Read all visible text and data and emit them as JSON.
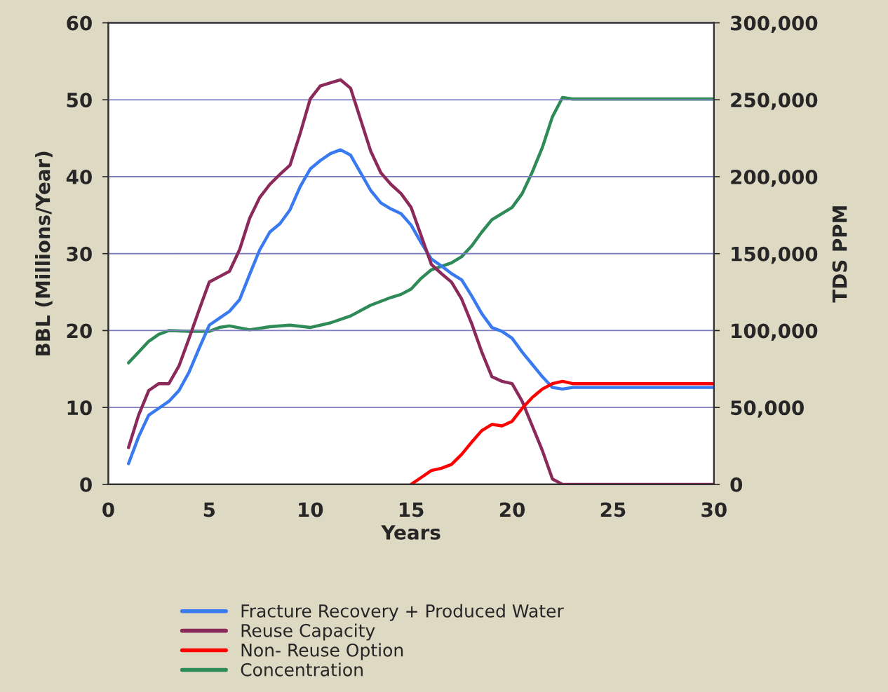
{
  "chart_data": {
    "type": "line",
    "xlabel": "Years",
    "ylabel": "BBL (Millions/Year)",
    "y2label": "TDS PPM",
    "xlim": [
      0,
      30
    ],
    "xticks": [
      0,
      5,
      10,
      15,
      20,
      25,
      30
    ],
    "ylim": [
      0,
      60
    ],
    "yticks": [
      0,
      10,
      20,
      30,
      40,
      50,
      60
    ],
    "y2lim": [
      0,
      300000
    ],
    "y2ticks": [
      {
        "value": 0,
        "label": "0"
      },
      {
        "value": 50000,
        "label": "50,000"
      },
      {
        "value": 100000,
        "label": "100,000"
      },
      {
        "value": 150000,
        "label": "150,000"
      },
      {
        "value": 200000,
        "label": "200,000"
      },
      {
        "value": 250000,
        "label": "250,000"
      },
      {
        "value": 300000,
        "label": "300,000"
      }
    ],
    "grid": "y",
    "legend": "bottom",
    "marker": "none",
    "line_style": "solid",
    "series": [
      {
        "name": "Fracture Recovery + Produced Water",
        "color": "#3a7af0",
        "x": [
          1,
          1.5,
          2,
          2.5,
          3,
          3.5,
          4,
          4.5,
          5,
          5.5,
          6,
          6.5,
          7,
          7.5,
          8,
          8.5,
          9,
          9.5,
          10,
          10.5,
          11,
          11.5,
          12,
          12.5,
          13,
          13.5,
          14,
          14.5,
          15,
          15.5,
          16,
          16.5,
          17,
          17.5,
          18,
          18.5,
          19,
          19.5,
          20,
          20.5,
          21,
          21.5,
          22,
          22.5,
          23,
          30
        ],
        "values": [
          2.7,
          6.2,
          9.0,
          9.9,
          10.8,
          12.2,
          14.6,
          17.7,
          20.7,
          21.6,
          22.5,
          24,
          27.3,
          30.5,
          32.8,
          33.9,
          35.7,
          38.7,
          41,
          42.1,
          43,
          43.5,
          42.8,
          40.5,
          38.2,
          36.6,
          35.8,
          35.2,
          33.7,
          31.4,
          29.3,
          28.4,
          27.4,
          26.6,
          24.5,
          22.2,
          20.4,
          19.9,
          19.0,
          17.2,
          15.6,
          14,
          12.6,
          12.4,
          12.6,
          12.6
        ]
      },
      {
        "name": "Reuse Capacity",
        "color": "#8b2a5a",
        "x": [
          1,
          1.5,
          2,
          2.5,
          3,
          3.5,
          4,
          4.5,
          5,
          5.5,
          6,
          6.5,
          7,
          7.5,
          8,
          8.5,
          9,
          9.5,
          10,
          10.5,
          11,
          11.5,
          12,
          12.5,
          13,
          13.5,
          14,
          14.5,
          15,
          15.5,
          16,
          16.5,
          17,
          17.5,
          18,
          18.5,
          19,
          19.5,
          20,
          20.5,
          21,
          21.5,
          22,
          22.5,
          30
        ],
        "values": [
          4.8,
          9,
          12.2,
          13.1,
          13.1,
          15.4,
          19,
          22.7,
          26.3,
          27,
          27.7,
          30.5,
          34.6,
          37.3,
          39,
          40.3,
          41.5,
          45.6,
          50.1,
          51.8,
          52.2,
          52.6,
          51.5,
          47.4,
          43.3,
          40.5,
          39,
          37.8,
          36,
          32.3,
          28.6,
          27.4,
          26.3,
          24.1,
          20.9,
          17.2,
          14,
          13.4,
          13.1,
          10.8,
          7.6,
          4.4,
          0.7,
          0,
          0
        ]
      },
      {
        "name": "Non- Reuse Option",
        "color": "#ff0000",
        "x": [
          15,
          15.5,
          16,
          16.5,
          17,
          17.5,
          18,
          18.5,
          19,
          19.5,
          20,
          20.5,
          21,
          21.5,
          22,
          22.5,
          23,
          30
        ],
        "values": [
          0,
          0.9,
          1.8,
          2.1,
          2.6,
          3.9,
          5.5,
          7,
          7.8,
          7.6,
          8.2,
          9.9,
          11.3,
          12.4,
          13.1,
          13.4,
          13.1,
          13.1
        ]
      },
      {
        "name": "Concentration",
        "color": "#2e8b57",
        "axis": "y2",
        "x": [
          1,
          1.5,
          2,
          2.5,
          3,
          4,
          5,
          5.5,
          6,
          7,
          8,
          9,
          10,
          11,
          12,
          13,
          14,
          14.5,
          15,
          15.5,
          16,
          17,
          17.5,
          18,
          18.5,
          19,
          19.5,
          20,
          20.5,
          21,
          21.5,
          22,
          22.5,
          23,
          30
        ],
        "values": [
          79000,
          86000,
          93000,
          97500,
          100000,
          99500,
          99500,
          102000,
          103000,
          100500,
          102500,
          103500,
          102000,
          105000,
          109500,
          116500,
          121500,
          123500,
          127000,
          134000,
          139500,
          144000,
          148000,
          155000,
          164000,
          172000,
          176000,
          180000,
          189000,
          203000,
          219000,
          239000,
          251500,
          250500,
          250500
        ]
      }
    ]
  }
}
